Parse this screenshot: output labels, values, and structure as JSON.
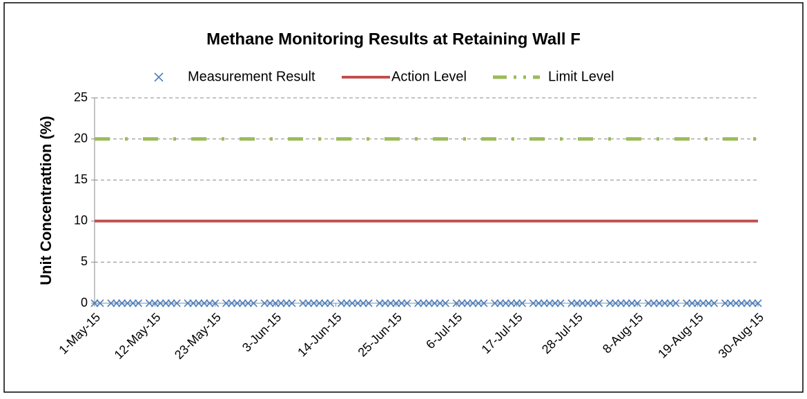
{
  "chart_data": {
    "type": "line",
    "title": "Methane Monitoring Results at Retaining Wall F",
    "y_label": "Unit Concentrattion (%)",
    "categories": [
      "1-May-15",
      null,
      null,
      null,
      null,
      null,
      null,
      null,
      null,
      null,
      null,
      "12-May-15",
      null,
      null,
      null,
      null,
      null,
      null,
      null,
      null,
      null,
      null,
      "23-May-15",
      null,
      null,
      null,
      null,
      null,
      null,
      null,
      null,
      null,
      null,
      "3-Jun-15",
      null,
      null,
      null,
      null,
      null,
      null,
      null,
      null,
      null,
      null,
      "14-Jun-15",
      null,
      null,
      null,
      null,
      null,
      null,
      null,
      null,
      null,
      null,
      "25-Jun-15",
      null,
      null,
      null,
      null,
      null,
      null,
      null,
      null,
      null,
      null,
      "6-Jul-15",
      null,
      null,
      null,
      null,
      null,
      null,
      null,
      null,
      null,
      null,
      "17-Jul-15",
      null,
      null,
      null,
      null,
      null,
      null,
      null,
      null,
      null,
      null,
      "28-Jul-15",
      null,
      null,
      null,
      null,
      null,
      null,
      null,
      null,
      null,
      null,
      "8-Aug-15",
      null,
      null,
      null,
      null,
      null,
      null,
      null,
      null,
      null,
      null,
      "19-Aug-15",
      null,
      null,
      null,
      null,
      null,
      null,
      null,
      null,
      null,
      null,
      "30-Aug-15"
    ],
    "series": [
      {
        "name": "Measurement Result",
        "color": "#4f81bd",
        "style": "marker",
        "values": [
          0,
          0,
          null,
          0,
          0,
          0,
          0,
          0,
          0,
          null,
          0,
          0,
          0,
          0,
          0,
          0,
          null,
          0,
          0,
          0,
          0,
          0,
          0,
          null,
          0,
          0,
          0,
          0,
          0,
          0,
          null,
          0,
          0,
          0,
          0,
          0,
          0,
          null,
          0,
          0,
          0,
          0,
          0,
          0,
          null,
          0,
          0,
          0,
          0,
          0,
          0,
          null,
          0,
          0,
          0,
          0,
          0,
          0,
          null,
          0,
          0,
          0,
          0,
          0,
          0,
          null,
          0,
          0,
          0,
          0,
          0,
          0,
          null,
          0,
          0,
          0,
          0,
          0,
          0,
          null,
          0,
          0,
          0,
          0,
          0,
          0,
          null,
          0,
          0,
          0,
          0,
          0,
          0,
          null,
          0,
          0,
          0,
          0,
          0,
          0,
          null,
          0,
          0,
          0,
          0,
          0,
          0,
          null,
          0,
          0,
          0,
          0,
          0,
          0,
          null,
          0,
          0,
          0,
          0,
          0,
          0,
          0
        ]
      },
      {
        "name": "Action Level",
        "color": "#c0504d",
        "style": "solid",
        "values": [
          10,
          10,
          10,
          10,
          10,
          10,
          10,
          10,
          10,
          10,
          10,
          10,
          10,
          10,
          10,
          10,
          10,
          10,
          10,
          10,
          10,
          10,
          10,
          10,
          10,
          10,
          10,
          10,
          10,
          10,
          10,
          10,
          10,
          10,
          10,
          10,
          10,
          10,
          10,
          10,
          10,
          10,
          10,
          10,
          10,
          10,
          10,
          10,
          10,
          10,
          10,
          10,
          10,
          10,
          10,
          10,
          10,
          10,
          10,
          10,
          10,
          10,
          10,
          10,
          10,
          10,
          10,
          10,
          10,
          10,
          10,
          10,
          10,
          10,
          10,
          10,
          10,
          10,
          10,
          10,
          10,
          10,
          10,
          10,
          10,
          10,
          10,
          10,
          10,
          10,
          10,
          10,
          10,
          10,
          10,
          10,
          10,
          10,
          10,
          10,
          10,
          10,
          10,
          10,
          10,
          10,
          10,
          10,
          10,
          10,
          10,
          10,
          10,
          10,
          10,
          10,
          10,
          10,
          10,
          10,
          10,
          10
        ]
      },
      {
        "name": "Limit Level",
        "color": "#9bbb59",
        "style": "dashdot",
        "values": [
          20,
          20,
          20,
          20,
          20,
          20,
          20,
          20,
          20,
          20,
          20,
          20,
          20,
          20,
          20,
          20,
          20,
          20,
          20,
          20,
          20,
          20,
          20,
          20,
          20,
          20,
          20,
          20,
          20,
          20,
          20,
          20,
          20,
          20,
          20,
          20,
          20,
          20,
          20,
          20,
          20,
          20,
          20,
          20,
          20,
          20,
          20,
          20,
          20,
          20,
          20,
          20,
          20,
          20,
          20,
          20,
          20,
          20,
          20,
          20,
          20,
          20,
          20,
          20,
          20,
          20,
          20,
          20,
          20,
          20,
          20,
          20,
          20,
          20,
          20,
          20,
          20,
          20,
          20,
          20,
          20,
          20,
          20,
          20,
          20,
          20,
          20,
          20,
          20,
          20,
          20,
          20,
          20,
          20,
          20,
          20,
          20,
          20,
          20,
          20,
          20,
          20,
          20,
          20,
          20,
          20,
          20,
          20,
          20,
          20,
          20,
          20,
          20,
          20,
          20,
          20,
          20,
          20,
          20,
          20,
          20,
          20
        ]
      }
    ],
    "ylim": [
      0,
      25
    ],
    "yticks": [
      0,
      5,
      10,
      15,
      20,
      25
    ],
    "grid": true,
    "legend": "top"
  }
}
